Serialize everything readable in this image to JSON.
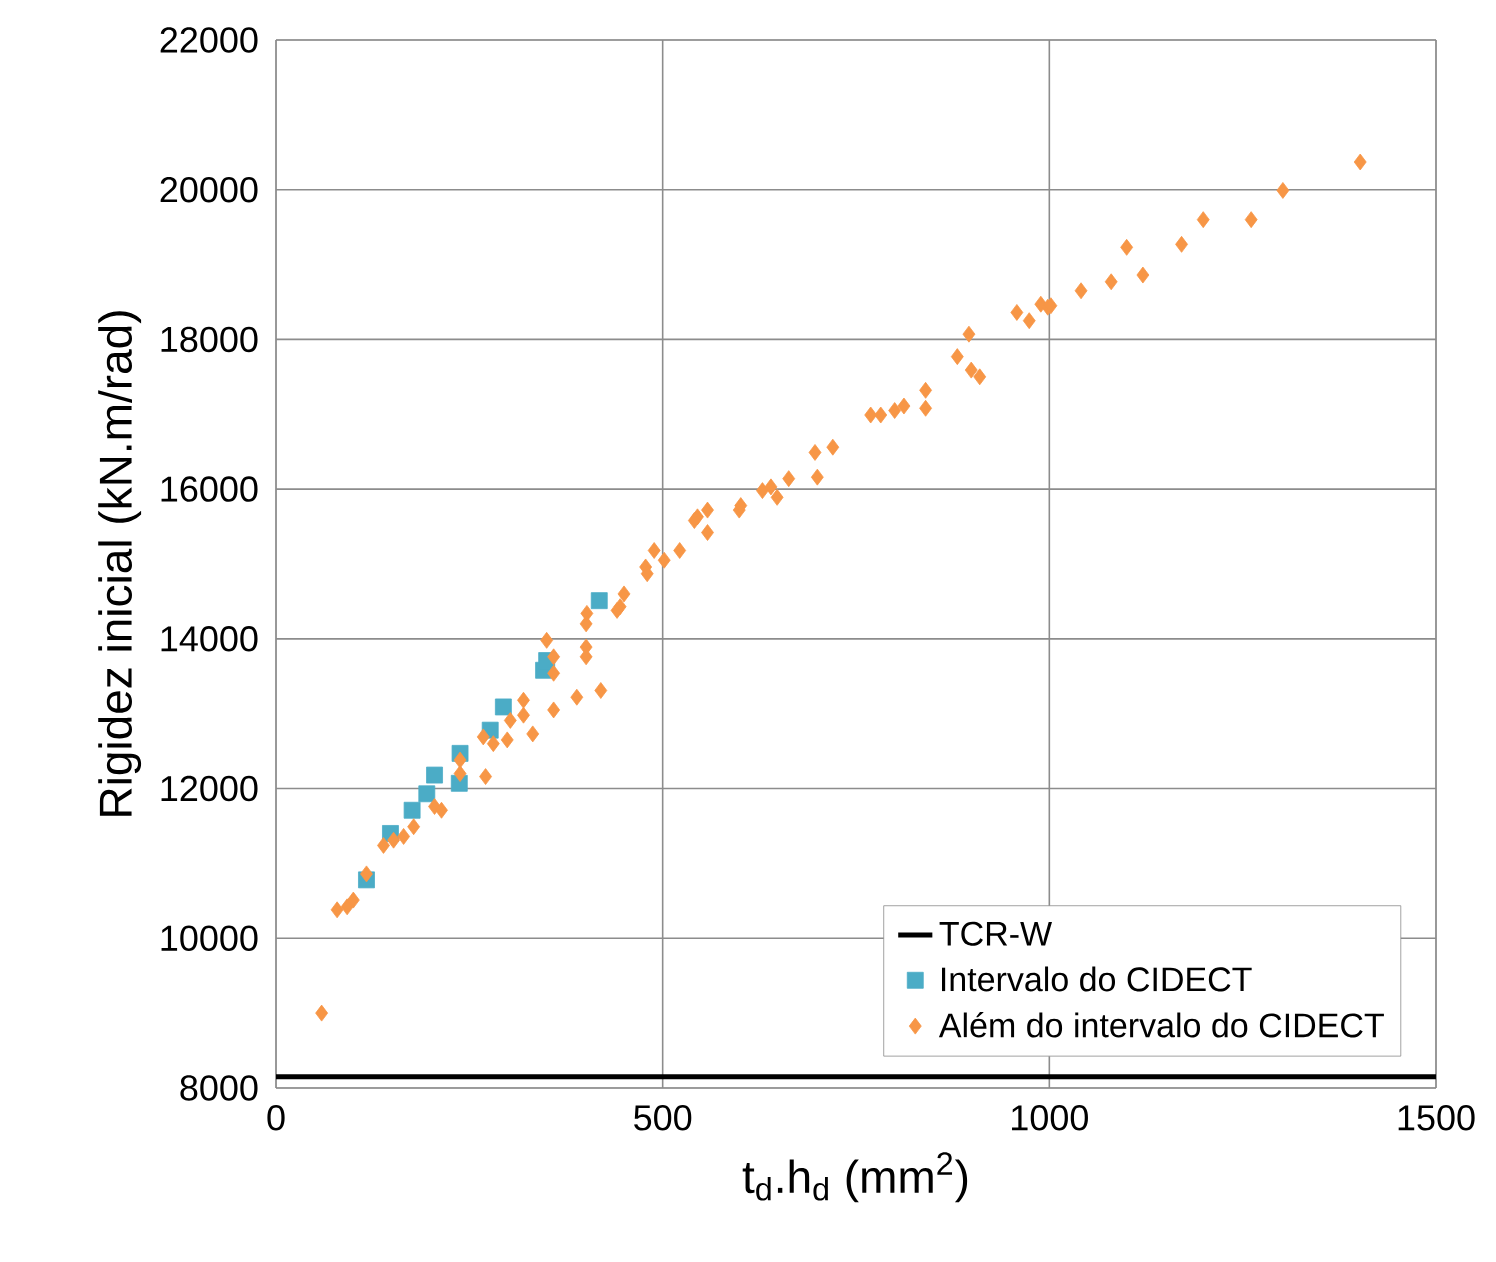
{
  "chart_data": {
    "type": "scatter",
    "xlabel": "t$_{d}$.h$_{d}$ (mm$^{2}$)",
    "ylabel": "Rigidez inicial (kN.m/rad)",
    "xlim": [
      0,
      1500
    ],
    "xticks": [
      0,
      500,
      1000,
      1500
    ],
    "ylim": [
      8000,
      22000
    ],
    "yticks": [
      8000,
      10000,
      12000,
      14000,
      16000,
      18000,
      20000,
      22000
    ],
    "grid": true,
    "legend": "bottom right",
    "series": [
      {
        "name": "TCR-W",
        "type": "line",
        "color": "#000000",
        "marker": "none",
        "line_style": "solid",
        "x": [
          0,
          1500
        ],
        "values": [
          8150,
          8150
        ]
      },
      {
        "name": "Intervalo do CIDECT",
        "color": "#4bacc6",
        "marker": "square",
        "x": [
          117,
          148,
          176,
          195,
          205,
          237,
          238,
          277,
          294,
          346,
          350,
          418
        ],
        "values": [
          10780,
          11400,
          11710,
          11930,
          12180,
          12070,
          12470,
          12780,
          13090,
          13580,
          13710,
          14510
        ]
      },
      {
        "name": "Além do intervalo do CIDECT",
        "color": "#f79646",
        "marker": "diamond",
        "x": [
          59,
          79,
          92,
          100,
          117,
          139,
          152,
          165,
          178,
          205,
          214,
          238,
          238,
          271,
          268,
          281,
          299,
          303,
          320,
          320,
          332,
          359,
          359,
          350,
          359,
          389,
          401,
          401,
          420,
          401,
          402,
          445,
          450,
          478,
          489,
          502,
          522,
          441,
          480,
          545,
          558,
          558,
          541,
          599,
          601,
          629,
          640,
          648,
          663,
          700,
          697,
          720,
          769,
          782,
          800,
          812,
          840,
          840,
          899,
          910,
          881,
          896,
          958,
          974,
          989,
          998,
          1002,
          1041,
          1080,
          1100,
          1121,
          1171,
          1199,
          1261,
          1302,
          1402
        ],
        "values": [
          9000,
          10380,
          10420,
          10510,
          10860,
          11240,
          11310,
          11360,
          11490,
          11760,
          11710,
          12380,
          12200,
          12160,
          12690,
          12600,
          12650,
          12910,
          13180,
          12980,
          12730,
          13050,
          13540,
          13980,
          13760,
          13220,
          13890,
          13760,
          13310,
          14200,
          14340,
          14430,
          14600,
          14960,
          15180,
          15050,
          15180,
          14380,
          14870,
          15630,
          15720,
          15420,
          15580,
          15720,
          15780,
          15980,
          16030,
          15890,
          16140,
          16160,
          16490,
          16560,
          16990,
          16990,
          17050,
          17110,
          17320,
          17080,
          17590,
          17500,
          17770,
          18070,
          18360,
          18250,
          18470,
          18430,
          18450,
          18650,
          18770,
          19230,
          18860,
          19270,
          19600,
          19600,
          19990,
          20370
        ]
      }
    ]
  }
}
